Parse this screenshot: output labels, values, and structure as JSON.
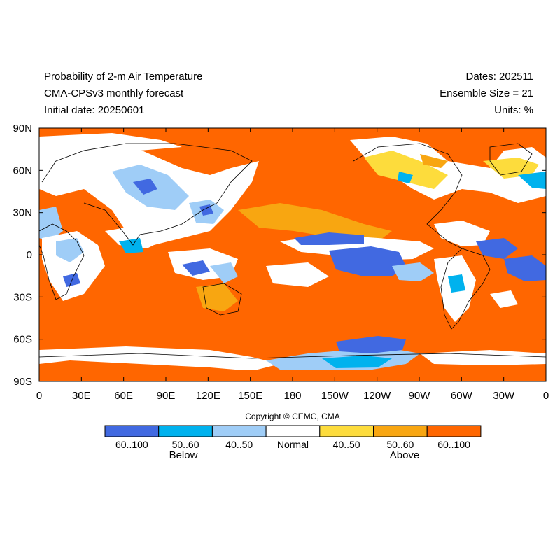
{
  "header": {
    "title_line1": "Probability of 2-m Air Temperature",
    "title_line2": "CMA-CPSv3 monthly forecast",
    "title_line3": "Initial date: 20250601",
    "dates": "Dates: 202511",
    "ensemble": "Ensemble Size = 21",
    "units": "Units: %"
  },
  "axes": {
    "lat_labels": [
      "90N",
      "60N",
      "30N",
      "0",
      "30S",
      "60S",
      "90S"
    ],
    "lon_labels": [
      "0",
      "30E",
      "60E",
      "90E",
      "120E",
      "150E",
      "180",
      "150W",
      "120W",
      "90W",
      "60W",
      "30W",
      "0"
    ]
  },
  "copyright": "Copyright © CEMC, CMA",
  "legend": {
    "bins": [
      {
        "label": "60..100",
        "color": "#4169e1"
      },
      {
        "label": "50..60",
        "color": "#00b2ee"
      },
      {
        "label": "40..50",
        "color": "#9fcdf7"
      },
      {
        "label": "Normal",
        "color": "#ffffff"
      },
      {
        "label": "40..50",
        "color": "#fddc3c"
      },
      {
        "label": "50..60",
        "color": "#f8a611"
      },
      {
        "label": "60..100",
        "color": "#ff6600"
      }
    ],
    "below_label": "Below",
    "above_label": "Above"
  }
}
